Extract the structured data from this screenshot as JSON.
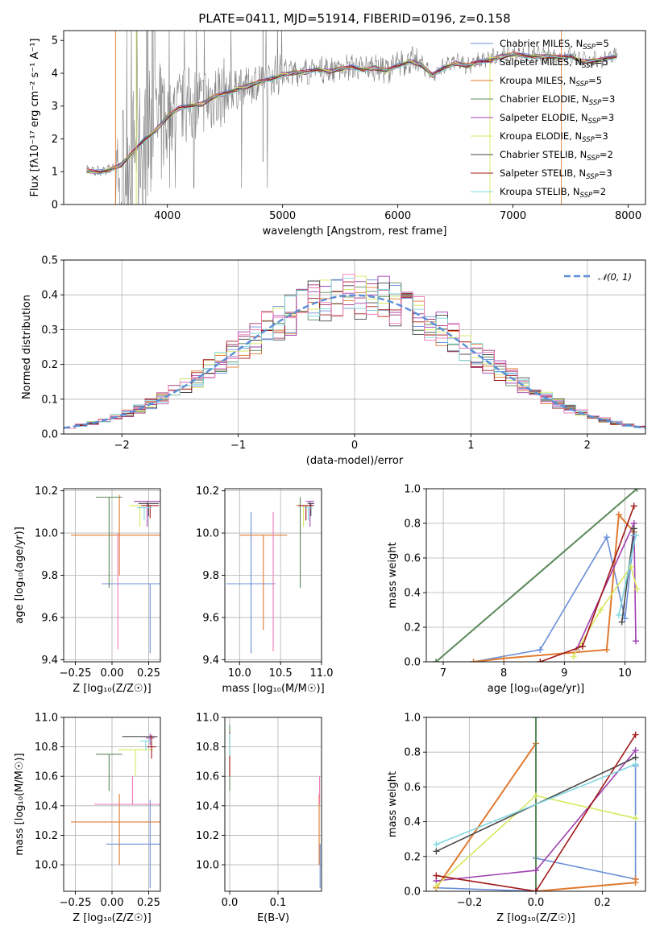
{
  "title": "PLATE=0411, MJD=51914, FIBERID=0196, z=0.158",
  "colors": {
    "data": "#808080",
    "Chabrier MILES": "#6a8fd8",
    "Salpeter MILES": "#a03070",
    "Kroupa MILES": "#e07a30",
    "Chabrier ELODIE": "#5a8a5a",
    "Salpeter ELODIE": "#a040b0",
    "Kroupa ELODIE": "#d8e860",
    "Chabrier STELIB": "#484848",
    "Salpeter STELIB": "#a01818",
    "Kroupa STELIB": "#80d8e0",
    "pinkish": "#f07ab8"
  },
  "chart_data": [
    {
      "type": "line",
      "id": "spectrum",
      "title": "PLATE=0411, MJD=51914, FIBERID=0196, z=0.158",
      "xlabel": "wavelength [Angstrom, rest frame]",
      "ylabel": "Flux [f$_\\lambda$10$^{-17}$ erg cm$^{-2}$ s$^{-1}$ A$^{-1}$]",
      "ylabel_display": "Flux [fλ10⁻¹⁷ erg cm⁻² s⁻¹ A⁻¹]",
      "xlim": [
        3100,
        8150
      ],
      "ylim": [
        0,
        5.3
      ],
      "xticks": [
        4000,
        5000,
        6000,
        7000,
        8000
      ],
      "yticks": [
        0,
        1,
        2,
        3,
        4,
        5
      ],
      "model_x": [
        3300,
        3400,
        3500,
        3600,
        3700,
        3800,
        3900,
        4000,
        4100,
        4200,
        4300,
        4400,
        4500,
        4600,
        4700,
        4800,
        4900,
        5000,
        5100,
        5200,
        5300,
        5400,
        5500,
        5600,
        5700,
        5800,
        5900,
        6000,
        6100,
        6200,
        6300,
        6400,
        6500,
        6600,
        6700,
        6800,
        6900,
        7000,
        7100,
        7200,
        7300,
        7400,
        7500,
        7600,
        7700,
        7800,
        7900
      ],
      "model_y": [
        1.05,
        1.0,
        1.1,
        1.25,
        1.6,
        2.0,
        2.3,
        2.7,
        2.95,
        3.05,
        3.1,
        3.3,
        3.4,
        3.55,
        3.65,
        3.75,
        3.85,
        4.0,
        4.05,
        4.05,
        4.15,
        4.1,
        4.15,
        4.2,
        4.15,
        4.2,
        4.1,
        4.25,
        4.4,
        4.3,
        3.95,
        4.2,
        4.35,
        4.25,
        4.35,
        4.45,
        4.55,
        4.6,
        4.55,
        4.55,
        4.55,
        4.5,
        4.55,
        4.4,
        4.4,
        4.45,
        4.55
      ],
      "series": [
        {
          "name": "Chabrier MILES, N$_{SSP}$=5",
          "label": "Chabrier MILES, N",
          "sub": "SSP",
          "tail": "=5"
        },
        {
          "name": "Salpeter MILES, N$_{SSP}$=5",
          "label": "Salpeter MILES, N",
          "sub": "SSP",
          "tail": "=5"
        },
        {
          "name": "Kroupa MILES, N$_{SSP}$=5",
          "label": "Kroupa MILES, N",
          "sub": "SSP",
          "tail": "=5"
        },
        {
          "name": "Chabrier ELODIE, N$_{SSP}$=3",
          "label": "Chabrier ELODIE, N",
          "sub": "SSP",
          "tail": "=3"
        },
        {
          "name": "Salpeter ELODIE, N$_{SSP}$=3",
          "label": "Salpeter ELODIE, N",
          "sub": "SSP",
          "tail": "=3"
        },
        {
          "name": "Kroupa ELODIE, N$_{SSP}$=3",
          "label": "Kroupa ELODIE, N",
          "sub": "SSP",
          "tail": "=3"
        },
        {
          "name": "Chabrier STELIB, N$_{SSP}$=2",
          "label": "Chabrier STELIB, N",
          "sub": "SSP",
          "tail": "=2"
        },
        {
          "name": "Salpeter STELIB, N$_{SSP}$=3",
          "label": "Salpeter STELIB, N",
          "sub": "SSP",
          "tail": "=3"
        },
        {
          "name": "Kroupa STELIB, N$_{SSP}$=2",
          "label": "Kroupa STELIB, N",
          "sub": "SSP",
          "tail": "=2"
        }
      ]
    },
    {
      "type": "histogram",
      "id": "residuals",
      "xlabel": "(data-model)/error",
      "ylabel": "Normed distribution",
      "xlim": [
        -2.5,
        2.5
      ],
      "ylim": [
        0,
        0.5
      ],
      "xticks": [
        -2,
        -1,
        0,
        1,
        2
      ],
      "yticks": [
        0.0,
        0.1,
        0.2,
        0.3,
        0.4,
        0.5
      ],
      "grid": true,
      "legend": "top-right",
      "reference": {
        "name": "$\\mathcal{N}(0,1)$",
        "label": "𝒩(0, 1)",
        "type": "gaussian",
        "mean": 0,
        "sigma": 1
      },
      "bin_edges": [
        -2.5,
        -2.4,
        -2.3,
        -2.2,
        -2.1,
        -2.0,
        -1.9,
        -1.8,
        -1.7,
        -1.6,
        -1.5,
        -1.4,
        -1.3,
        -1.2,
        -1.1,
        -1.0,
        -0.9,
        -0.8,
        -0.7,
        -0.6,
        -0.5,
        -0.4,
        -0.3,
        -0.2,
        -0.1,
        0.0,
        0.1,
        0.2,
        0.3,
        0.4,
        0.5,
        0.6,
        0.7,
        0.8,
        0.9,
        1.0,
        1.1,
        1.2,
        1.3,
        1.4,
        1.5,
        1.6,
        1.7,
        1.8,
        1.9,
        2.0,
        2.1,
        2.2,
        2.3,
        2.4,
        2.5
      ]
    },
    {
      "type": "errorbar",
      "id": "age_vs_Z",
      "xlabel": "Z [log$_{10}$(Z/Z$_\\odot$)]",
      "xlabel_display": "Z [log₁₀(Z/Z☉)]",
      "ylabel": "age  [log$_{10}$(age/yr)]",
      "ylabel_display": "age  [log₁₀(age/yr)]",
      "xlim": [
        -0.33,
        0.33
      ],
      "ylim": [
        9.39,
        10.21
      ],
      "xticks": [
        -0.25,
        0.0,
        0.25
      ],
      "xticklabels": [
        "−0.25",
        "0.00",
        "0.25"
      ],
      "yticks": [
        9.4,
        9.6,
        9.8,
        10.0,
        10.2
      ],
      "grid": true,
      "points": [
        {
          "series": "Chabrier MILES",
          "x": 0.26,
          "y": 9.76,
          "xerr": 0.33,
          "yerr": [
            0.33,
            0.0
          ]
        },
        {
          "series": "Kroupa MILES",
          "x": 0.05,
          "y": 9.99,
          "xerr": 0.33,
          "yerr": [
            0.19,
            0.19
          ]
        },
        {
          "series": "pinkish",
          "x": 0.04,
          "y": 10.0,
          "xerr": 0.0,
          "yerr": [
            0.55,
            0.0
          ]
        },
        {
          "series": "Chabrier ELODIE",
          "x": -0.02,
          "y": 10.17,
          "xerr": 0.09,
          "yerr": [
            0.43,
            0.0
          ]
        },
        {
          "series": "Salpeter ELODIE",
          "x": 0.24,
          "y": 10.15,
          "xerr": 0.09,
          "yerr": [
            0.12,
            0.0
          ]
        },
        {
          "series": "Kroupa ELODIE",
          "x": 0.19,
          "y": 10.13,
          "xerr": 0.07,
          "yerr": [
            0.1,
            0.0
          ]
        },
        {
          "series": "Chabrier STELIB",
          "x": 0.25,
          "y": 10.14,
          "xerr": 0.07,
          "yerr": [
            0.06,
            0.0
          ]
        },
        {
          "series": "Salpeter STELIB",
          "x": 0.26,
          "y": 10.13,
          "xerr": 0.06,
          "yerr": [
            0.06,
            0.0
          ]
        },
        {
          "series": "Kroupa STELIB",
          "x": 0.22,
          "y": 10.12,
          "xerr": 0.05,
          "yerr": [
            0.06,
            0.0
          ]
        }
      ]
    },
    {
      "type": "errorbar",
      "id": "age_vs_mass",
      "xlabel": "mass [log$_{10}$(M/M$_\\odot$)]",
      "xlabel_display": "mass [log₁₀(M/M☉)]",
      "xlim": [
        9.82,
        11.0
      ],
      "ylim": [
        9.39,
        10.21
      ],
      "xticks": [
        10.0,
        10.5,
        11.0
      ],
      "xticklabels": [
        "10.0",
        "10.5",
        "11.0"
      ],
      "yticks": [
        9.4,
        9.6,
        9.8,
        10.0,
        10.2
      ],
      "grid": true,
      "points": [
        {
          "series": "Chabrier MILES",
          "x": 10.14,
          "y": 9.76,
          "xerr": 0.3,
          "yerr": [
            0.33,
            0.34
          ]
        },
        {
          "series": "Kroupa MILES",
          "x": 10.29,
          "y": 9.99,
          "xerr": 0.29,
          "yerr": [
            0.45,
            0.0
          ]
        },
        {
          "series": "pinkish",
          "x": 10.41,
          "y": 9.99,
          "xerr": 0.0,
          "yerr": [
            0.55,
            0.11
          ]
        },
        {
          "series": "Chabrier ELODIE",
          "x": 10.74,
          "y": 10.17,
          "xerr": 0.0,
          "yerr": [
            0.43,
            0.0
          ]
        },
        {
          "series": "Salpeter ELODIE",
          "x": 10.86,
          "y": 10.15,
          "xerr": 0.05,
          "yerr": [
            0.12,
            0.0
          ]
        },
        {
          "series": "Kroupa ELODIE",
          "x": 10.78,
          "y": 10.13,
          "xerr": 0.1,
          "yerr": [
            0.1,
            0.0
          ]
        },
        {
          "series": "Chabrier STELIB",
          "x": 10.87,
          "y": 10.14,
          "xerr": 0.04,
          "yerr": [
            0.06,
            0.0
          ]
        },
        {
          "series": "Salpeter STELIB",
          "x": 10.81,
          "y": 10.13,
          "xerr": 0.1,
          "yerr": [
            0.07,
            0.0
          ]
        },
        {
          "series": "Kroupa STELIB",
          "x": 10.84,
          "y": 10.12,
          "xerr": 0.05,
          "yerr": [
            0.06,
            0.0
          ]
        }
      ]
    },
    {
      "type": "line",
      "id": "mass_weight_vs_age",
      "xlabel": "age  [log$_{10}$(age/yr)]",
      "xlabel_display": "age  [log₁₀(age/yr)]",
      "ylabel": "mass weight",
      "xlim": [
        6.72,
        10.34
      ],
      "ylim": [
        0,
        1.0
      ],
      "xticks": [
        7,
        8,
        9,
        10
      ],
      "yticks": [
        0.0,
        0.2,
        0.4,
        0.6,
        0.8,
        1.0
      ],
      "grid": true,
      "series": [
        {
          "name": "Chabrier MILES",
          "x": [
            7.5,
            8.6,
            9.7,
            10.0,
            10.15
          ],
          "y": [
            0.0,
            0.07,
            0.72,
            0.25,
            0.73
          ]
        },
        {
          "name": "Kroupa MILES",
          "x": [
            7.5,
            8.0,
            9.7,
            9.9,
            10.15
          ],
          "y": [
            0.0,
            0.02,
            0.07,
            0.85,
            0.75
          ]
        },
        {
          "name": "Chabrier ELODIE",
          "x": [
            6.88,
            10.2
          ],
          "y": [
            0.0,
            1.0
          ]
        },
        {
          "name": "Salpeter ELODIE",
          "x": [
            9.2,
            10.15,
            10.18
          ],
          "y": [
            0.07,
            0.8,
            0.12
          ]
        },
        {
          "name": "Kroupa ELODIE",
          "x": [
            9.15,
            9.6,
            10.1,
            10.2
          ],
          "y": [
            0.03,
            0.3,
            0.55,
            0.42
          ]
        },
        {
          "name": "Chabrier STELIB",
          "x": [
            9.95,
            10.15
          ],
          "y": [
            0.23,
            0.77
          ]
        },
        {
          "name": "Salpeter STELIB",
          "x": [
            8.6,
            9.3,
            10.15
          ],
          "y": [
            0.0,
            0.09,
            0.9
          ]
        },
        {
          "name": "Kroupa STELIB",
          "x": [
            9.9,
            10.18
          ],
          "y": [
            0.27,
            0.73
          ]
        }
      ]
    },
    {
      "type": "errorbar",
      "id": "mass_vs_Z",
      "xlabel": "Z [log$_{10}$(Z/Z$_\\odot$)]",
      "xlabel_display": "Z [log₁₀(Z/Z☉)]",
      "ylabel": "mass [log$_{10}$(M/M$_\\odot$)]",
      "ylabel_display": "mass [log₁₀(M/M☉)]",
      "xlim": [
        -0.33,
        0.33
      ],
      "ylim": [
        9.82,
        11.0
      ],
      "xticks": [
        -0.25,
        0.0,
        0.25
      ],
      "xticklabels": [
        "−0.25",
        "0.00",
        "0.25"
      ],
      "yticks": [
        10.0,
        10.2,
        10.4,
        10.6,
        10.8,
        11.0
      ],
      "grid": true,
      "points": [
        {
          "series": "Chabrier MILES",
          "x": 0.26,
          "y": 10.14,
          "xerr": 0.3,
          "yerr": [
            0.3,
            0.3
          ]
        },
        {
          "series": "Kroupa MILES",
          "x": 0.05,
          "y": 10.29,
          "xerr": 0.33,
          "yerr": [
            0.29,
            0.19
          ]
        },
        {
          "series": "pinkish",
          "x": 0.14,
          "y": 10.41,
          "xerr": 0.26,
          "yerr": [
            0.0,
            0.19
          ]
        },
        {
          "series": "Chabrier ELODIE",
          "x": -0.02,
          "y": 10.75,
          "xerr": 0.09,
          "yerr": [
            0.25,
            0.0
          ]
        },
        {
          "series": "Salpeter ELODIE",
          "x": 0.26,
          "y": 10.86,
          "xerr": 0.03,
          "yerr": [
            0.05,
            0.03
          ]
        },
        {
          "series": "Kroupa ELODIE",
          "x": 0.16,
          "y": 10.78,
          "xerr": 0.12,
          "yerr": [
            0.18,
            0.0
          ]
        },
        {
          "series": "Chabrier STELIB",
          "x": 0.19,
          "y": 10.87,
          "xerr": 0.12,
          "yerr": [
            0.0,
            0.0
          ]
        },
        {
          "series": "Salpeter STELIB",
          "x": 0.27,
          "y": 10.8,
          "xerr": 0.03,
          "yerr": [
            0.08,
            0.08
          ]
        },
        {
          "series": "Kroupa STELIB",
          "x": 0.23,
          "y": 10.84,
          "xerr": 0.04,
          "yerr": [
            0.06,
            0.0
          ]
        }
      ]
    },
    {
      "type": "errorbar",
      "id": "mass_vs_EBV",
      "xlabel": "E(B-V)",
      "xlim": [
        -0.01,
        0.19
      ],
      "ylim": [
        9.82,
        11.0
      ],
      "xticks": [
        0.0,
        0.1
      ],
      "xticklabels": [
        "0.0",
        "0.1"
      ],
      "yticks": [
        10.0,
        10.2,
        10.4,
        10.6,
        10.8,
        11.0
      ],
      "grid": true,
      "points": [
        {
          "series": "Chabrier ELODIE",
          "x": 0.0,
          "y": 10.75,
          "xerr": 0.0,
          "yerr": [
            0.25,
            0.2
          ]
        },
        {
          "series": "Salpeter STELIB",
          "x": 0.0,
          "y": 10.8,
          "xerr": 0.0,
          "yerr": [
            0.2,
            0.1
          ]
        },
        {
          "series": "Kroupa STELIB",
          "x": 0.0,
          "y": 10.84,
          "xerr": 0.0,
          "yerr": [
            0.1,
            0.05
          ]
        },
        {
          "series": "Kroupa MILES",
          "x": 0.185,
          "y": 10.29,
          "xerr": 0.0,
          "yerr": [
            0.29,
            0.19
          ]
        },
        {
          "series": "pinkish",
          "x": 0.186,
          "y": 10.41,
          "xerr": 0.0,
          "yerr": [
            0.0,
            0.19
          ]
        },
        {
          "series": "Chabrier MILES",
          "x": 0.187,
          "y": 10.14,
          "xerr": 0.0,
          "yerr": [
            0.3,
            0.0
          ]
        }
      ]
    },
    {
      "type": "line",
      "id": "mass_weight_vs_Z",
      "xlabel": "Z [log$_{10}$(Z/Z$_\\odot$)]",
      "xlabel_display": "Z [log₁₀(Z/Z☉)]",
      "ylabel": "mass weight",
      "xlim": [
        -0.33,
        0.33
      ],
      "ylim": [
        0,
        1.0
      ],
      "xticks": [
        -0.2,
        0.0,
        0.2
      ],
      "xticklabels": [
        "−0.2",
        "0.0",
        "0.2"
      ],
      "yticks": [
        0.0,
        0.2,
        0.4,
        0.6,
        0.8,
        1.0
      ],
      "grid": true,
      "series": [
        {
          "name": "Chabrier MILES",
          "x": [
            -0.3,
            0.0,
            0.0,
            0.3,
            0.3
          ],
          "y": [
            0.02,
            0.0,
            0.19,
            0.07,
            0.72
          ]
        },
        {
          "name": "Kroupa MILES",
          "x": [
            -0.3,
            0.0,
            0.0,
            0.3,
            0.3
          ],
          "y": [
            0.02,
            0.85,
            0.0,
            0.05,
            0.07
          ]
        },
        {
          "name": "Chabrier ELODIE",
          "x": [
            0.0,
            0.0
          ],
          "y": [
            0.0,
            1.0
          ]
        },
        {
          "name": "Salpeter ELODIE",
          "x": [
            -0.3,
            0.0,
            0.3
          ],
          "y": [
            0.06,
            0.12,
            0.81
          ]
        },
        {
          "name": "Kroupa ELODIE",
          "x": [
            -0.3,
            0.0,
            0.3
          ],
          "y": [
            0.03,
            0.55,
            0.42
          ]
        },
        {
          "name": "Chabrier STELIB",
          "x": [
            -0.3,
            0.3
          ],
          "y": [
            0.23,
            0.77
          ]
        },
        {
          "name": "Salpeter STELIB",
          "x": [
            -0.3,
            0.0,
            0.3
          ],
          "y": [
            0.09,
            0.0,
            0.9
          ]
        },
        {
          "name": "Kroupa STELIB",
          "x": [
            -0.3,
            0.3
          ],
          "y": [
            0.27,
            0.73
          ]
        }
      ]
    }
  ]
}
